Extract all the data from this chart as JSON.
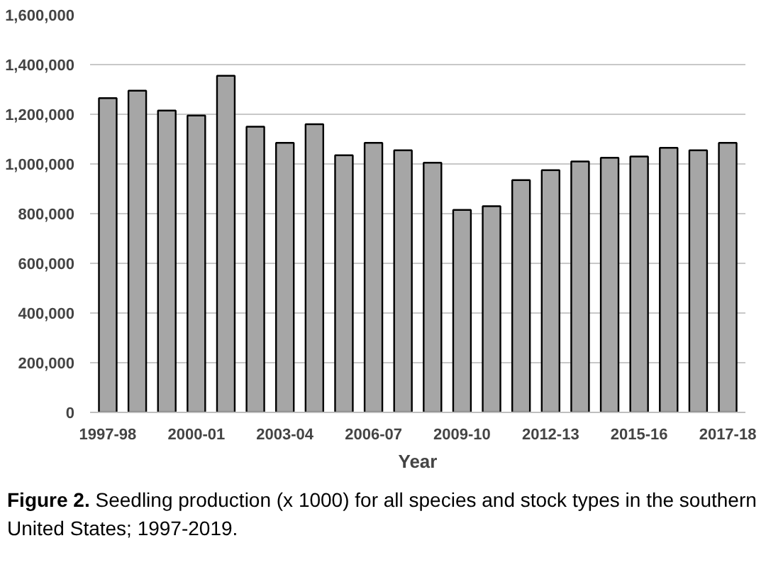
{
  "chart_data": {
    "type": "bar",
    "xlabel": "Year",
    "categories": [
      "1997-98",
      null,
      null,
      "2000-01",
      null,
      null,
      "2003-04",
      null,
      null,
      "2006-07",
      null,
      null,
      "2009-10",
      null,
      null,
      "2012-13",
      null,
      null,
      "2015-16",
      null,
      null,
      "2017-18"
    ],
    "values": [
      1265000,
      1295000,
      1215000,
      1195000,
      1355000,
      1150000,
      1085000,
      1160000,
      1035000,
      1085000,
      1055000,
      1005000,
      815000,
      830000,
      935000,
      975000,
      1010000,
      1025000,
      1030000,
      1065000,
      1055000,
      1085000
    ],
    "color": "#a6a6a6",
    "ylim": [
      0,
      1600000
    ],
    "yticks": [
      {
        "value": 0,
        "label": "0"
      },
      {
        "value": 200000,
        "label": "200,000"
      },
      {
        "value": 400000,
        "label": "400,000"
      },
      {
        "value": 600000,
        "label": "600,000"
      },
      {
        "value": 800000,
        "label": "800,000"
      },
      {
        "value": 1000000,
        "label": "1,000,000"
      },
      {
        "value": 1200000,
        "label": "1,200,000"
      },
      {
        "value": 1400000,
        "label": "1,400,000"
      },
      {
        "value": 1600000,
        "label": "1,600,000"
      }
    ],
    "grid": "y",
    "annotations": [
      "Figure 2. Seedling production (x 1000) for all species and stock types in the southern United States; 1997-2019."
    ]
  }
}
